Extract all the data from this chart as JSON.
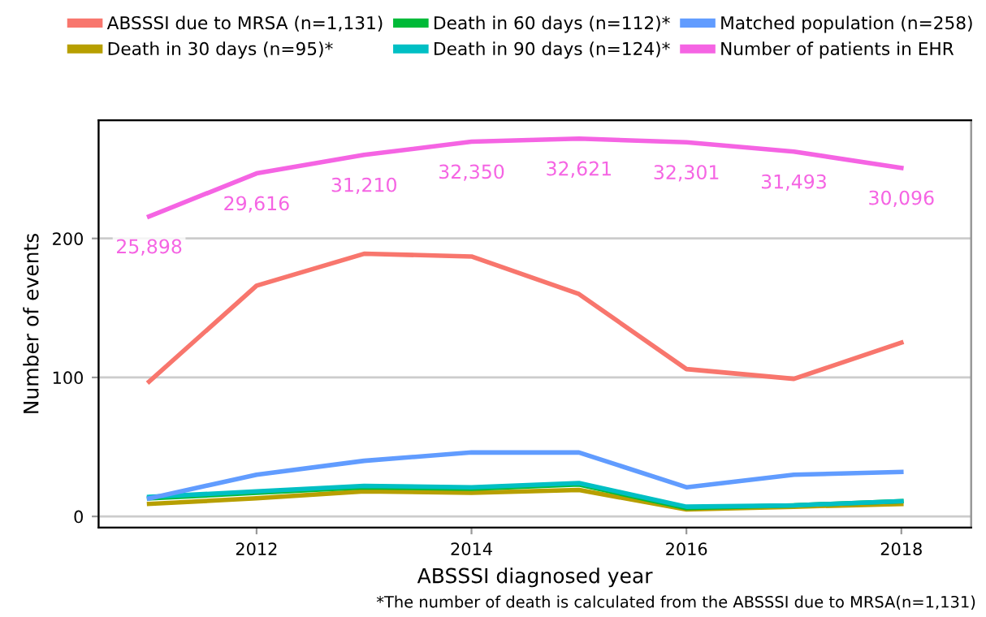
{
  "chart_data": {
    "type": "line",
    "xlabel": "ABSSSI diagnosed year",
    "ylabel": "Number of events",
    "x": [
      2011,
      2012,
      2013,
      2014,
      2015,
      2016,
      2017,
      2018
    ],
    "series": [
      {
        "name": "ABSSSI due to MRSA (n=1,131)",
        "color": "#f8766d",
        "values": [
          97,
          166,
          189,
          187,
          160,
          106,
          99,
          125
        ]
      },
      {
        "name": "Death in 30 days (n=95)*",
        "color": "#b79f00",
        "values": [
          9,
          13,
          18,
          17,
          19,
          5,
          7,
          9
        ]
      },
      {
        "name": "Death in 60 days (n=112)*",
        "color": "#00ba38",
        "values": [
          13,
          17,
          21,
          20,
          23,
          6,
          8,
          11
        ]
      },
      {
        "name": "Death in 90 days (n=124)*",
        "color": "#00bfc4",
        "values": [
          14,
          18,
          22,
          21,
          24,
          7,
          8,
          11
        ]
      },
      {
        "name": "Matched population (n=258)",
        "color": "#619cff",
        "values": [
          13,
          30,
          40,
          46,
          46,
          21,
          30,
          32
        ]
      },
      {
        "name": "Number of patients in EHR",
        "color": "#f564e3",
        "axis": "y2",
        "values": [
          25898,
          29616,
          31210,
          32350,
          32621,
          32301,
          31493,
          30096
        ],
        "value_labels": [
          "25,898",
          "29,616",
          "31,210",
          "32,350",
          "32,621",
          "32,301",
          "31,493",
          "30,096"
        ]
      }
    ],
    "xlim": [
      2010.53,
      2018.65
    ],
    "xticks": [
      2012,
      2014,
      2016,
      2018
    ],
    "ylim": [
      -8,
      285
    ],
    "yticks": [
      0,
      100,
      200
    ],
    "y2lim": [
      -960,
      34200
    ],
    "grid": "y",
    "legend": "top",
    "marker": "none",
    "line_style": "solid",
    "annotations": [
      "*The number of death is calculated from the ABSSSI due to MRSA(n=1,131)"
    ]
  }
}
